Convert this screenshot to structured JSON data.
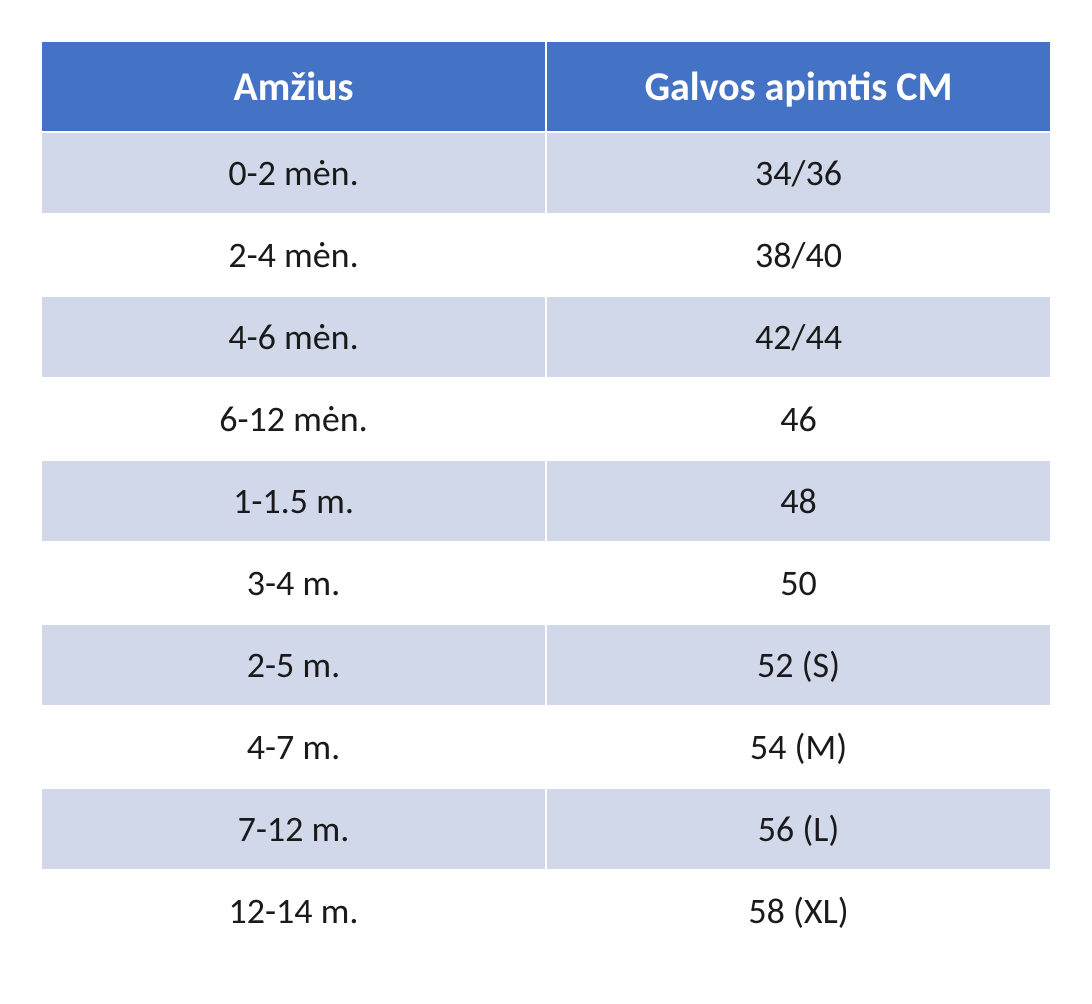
{
  "table": {
    "type": "table",
    "columns": [
      {
        "header": "Amžius",
        "width_pct": 50,
        "align": "center"
      },
      {
        "header": "Galvos apimtis CM",
        "width_pct": 50,
        "align": "center"
      }
    ],
    "rows": [
      [
        "0-2 mėn.",
        "34/36"
      ],
      [
        "2-4 mėn.",
        "38/40"
      ],
      [
        "4-6 mėn.",
        "42/44"
      ],
      [
        "6-12 mėn.",
        "46"
      ],
      [
        "1-1.5 m.",
        "48"
      ],
      [
        "3-4 m.",
        "50"
      ],
      [
        "2-5 m.",
        "52 (S)"
      ],
      [
        "4-7 m.",
        "54 (M)"
      ],
      [
        "7-12 m.",
        "56 (L)"
      ],
      [
        "12-14 m.",
        "58 (XL)"
      ]
    ],
    "header_bg_color": "#4472c4",
    "header_text_color": "#ffffff",
    "header_fontsize": 40,
    "header_fontweight": "bold",
    "row_odd_bg_color": "#d0d8ea",
    "row_even_bg_color": "#ffffff",
    "cell_text_color": "#1a1a1a",
    "cell_fontsize": 36,
    "border_color": "#ffffff",
    "border_width": 2,
    "font_family": "Calibri"
  }
}
